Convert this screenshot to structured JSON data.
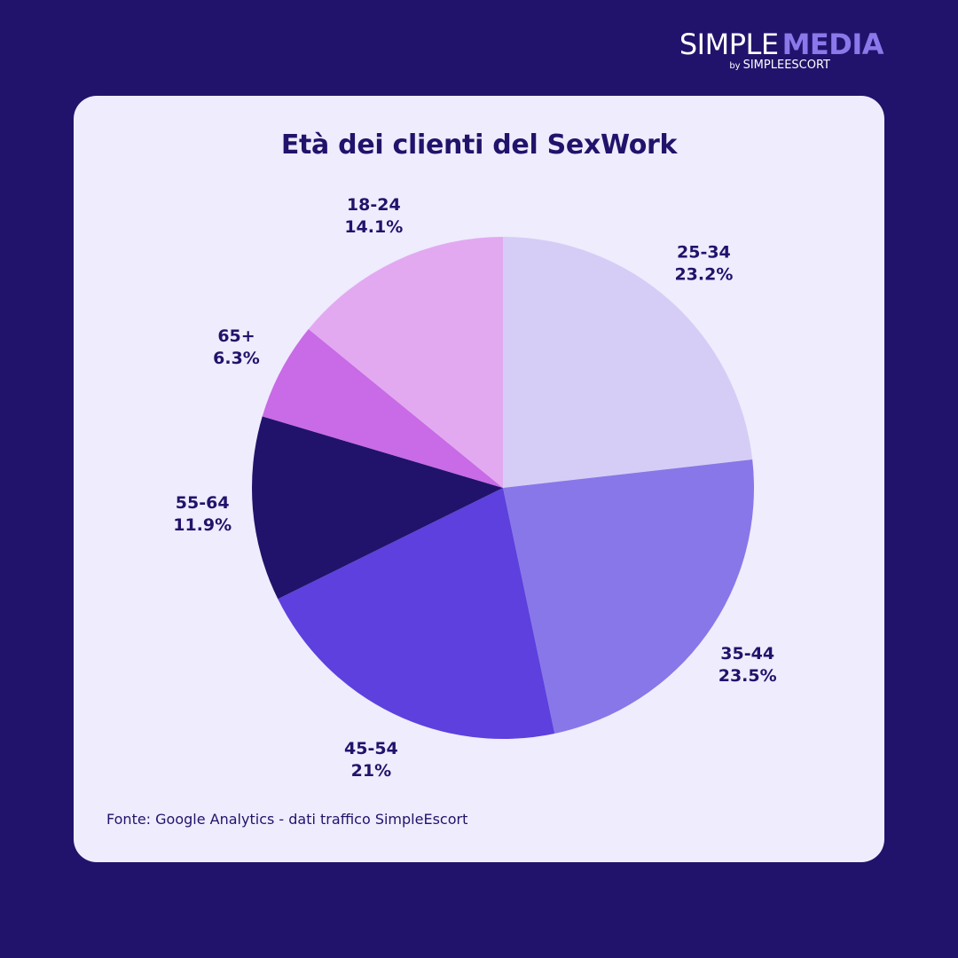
{
  "brand": {
    "name_part1": "SIMPLE",
    "name_part2": "MEDIA",
    "by": "by",
    "sub": "SIMPLEESCORT"
  },
  "source_text": "Fonte: Google Analytics - dati traffico SimpleEscort",
  "chart_data": {
    "type": "pie",
    "title": "Età dei clienti del SexWork",
    "slices": [
      {
        "category": "25-34",
        "value": 23.2,
        "label": "23.2%",
        "color": "#d6cdf6"
      },
      {
        "category": "35-44",
        "value": 23.5,
        "label": "23.5%",
        "color": "#8877e8"
      },
      {
        "category": "45-54",
        "value": 21,
        "label": "21%",
        "color": "#5d40de"
      },
      {
        "category": "55-64",
        "value": 11.9,
        "label": "11.9%",
        "color": "#21136b"
      },
      {
        "category": "65+",
        "value": 6.3,
        "label": "6.3%",
        "color": "#c96ae6"
      },
      {
        "category": "18-24",
        "value": 14.1,
        "label": "14.1%",
        "color": "#e2a9f1"
      }
    ],
    "start_angle_deg": 0,
    "direction": "clockwise",
    "legend": "none"
  }
}
